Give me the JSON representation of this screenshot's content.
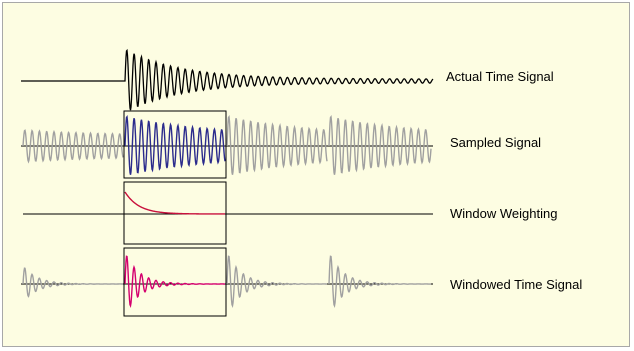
{
  "labels": {
    "actual": "Actual Time Signal",
    "sampled": "Sampled Signal",
    "window": "Window Weighting",
    "windowed": "Windowed Time Signal"
  },
  "colors": {
    "background": "#fdfde2",
    "border": "#a8a8a8",
    "actual_signal": "#000000",
    "sampled_signal": "#2b2b8c",
    "window_curve": "#c8103c",
    "windowed_signal": "#d4006e",
    "repeat_signal": "#a0a0a0",
    "axis": "#000000",
    "window_frame": "#000000"
  }
}
